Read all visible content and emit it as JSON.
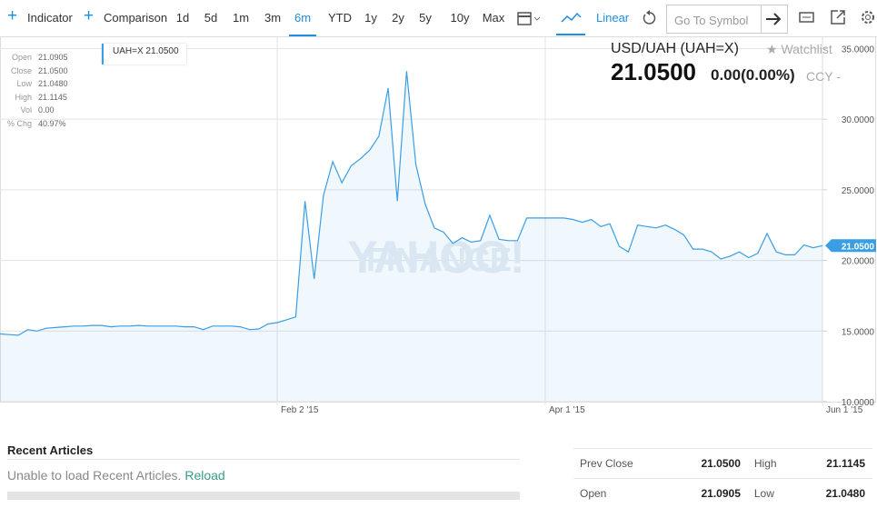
{
  "toolbar": {
    "indicator": "Indicator",
    "comparison": "Comparison",
    "ranges": [
      "1d",
      "5d",
      "1m",
      "3m",
      "6m",
      "YTD",
      "1y",
      "2y",
      "5y",
      "10y",
      "Max"
    ],
    "active_range": "6m",
    "scale": "Linear",
    "symbol_placeholder": "Go To Symbol"
  },
  "quote": {
    "name": "USD/UAH (UAH=X)",
    "watchlist": "Watchlist",
    "price": "21.0500",
    "change": "0.00(0.00%)",
    "currency": "CCY -"
  },
  "ohlc": [
    {
      "label": "Open",
      "value": "21.0905"
    },
    {
      "label": "Close",
      "value": "21.0500"
    },
    {
      "label": "Low",
      "value": "21.0480"
    },
    {
      "label": "High",
      "value": "21.1145"
    },
    {
      "label": "Vol",
      "value": "0.00"
    },
    {
      "label": "% Chg",
      "value": "40.97%"
    }
  ],
  "chart_data": {
    "type": "line",
    "legend_value": "21.0500",
    "last_label": "21.0500",
    "watermark": [
      "YAHOO!",
      "FINANCE"
    ],
    "categories": [
      null,
      null,
      null,
      null,
      null,
      null,
      null,
      null,
      null,
      null,
      null,
      null,
      null,
      null,
      null,
      null,
      null,
      null,
      null,
      null,
      null,
      null,
      null,
      null,
      null,
      null,
      null,
      null,
      null,
      null,
      "Feb 2 '15",
      null,
      null,
      null,
      null,
      null,
      null,
      null,
      null,
      null,
      null,
      null,
      null,
      null,
      null,
      null,
      null,
      null,
      null,
      null,
      null,
      null,
      null,
      null,
      null,
      null,
      null,
      null,
      null,
      "Apr 1 '15",
      null,
      null,
      null,
      null,
      null,
      null,
      null,
      null,
      null,
      null,
      null,
      null,
      null,
      null,
      null,
      null,
      null,
      null,
      null,
      null,
      null,
      null,
      null,
      null,
      null,
      null,
      null,
      null,
      null,
      "Jun 1 '15"
    ],
    "series": [
      {
        "name": "UAH=X",
        "color": "#3a9ee4",
        "values": [
          14.8,
          14.75,
          14.7,
          15.1,
          15.0,
          15.2,
          15.25,
          15.3,
          15.35,
          15.35,
          15.4,
          15.4,
          15.3,
          15.35,
          15.35,
          15.4,
          15.35,
          15.35,
          15.35,
          15.35,
          15.3,
          15.3,
          15.1,
          15.35,
          15.35,
          15.35,
          15.3,
          15.1,
          15.15,
          15.5,
          15.6,
          15.8,
          16.0,
          24.2,
          18.7,
          24.6,
          27.0,
          25.5,
          26.7,
          27.2,
          27.8,
          28.8,
          32.2,
          24.2,
          33.4,
          26.8,
          24.0,
          22.3,
          22.0,
          21.2,
          21.6,
          21.3,
          21.4,
          23.2,
          21.5,
          21.4,
          21.4,
          23.0,
          23.0,
          23.0,
          23.0,
          23.0,
          22.9,
          22.7,
          22.9,
          22.4,
          22.6,
          21.0,
          20.6,
          22.5,
          22.4,
          22.3,
          22.5,
          22.2,
          21.8,
          20.8,
          20.8,
          20.6,
          20.1,
          20.3,
          20.6,
          20.2,
          20.5,
          21.9,
          20.6,
          20.4,
          20.4,
          21.1,
          20.9,
          21.05
        ]
      }
    ],
    "ylim": [
      10,
      35.8
    ],
    "yticks": [
      {
        "value": 10,
        "label": "10.0000"
      },
      {
        "value": 15,
        "label": "15.0000"
      },
      {
        "value": 20,
        "label": "20.0000"
      },
      {
        "value": 25,
        "label": "25.0000"
      },
      {
        "value": 30,
        "label": "30.0000"
      },
      {
        "value": 35,
        "label": "35.0000"
      }
    ],
    "grid": true
  },
  "articles": {
    "title": "Recent Articles",
    "message": "Unable to load Recent Articles.",
    "reload": "Reload"
  },
  "stats": {
    "rows": [
      [
        "Prev Close",
        "21.0500",
        "High",
        "21.1145"
      ],
      [
        "Open",
        "21.0905",
        "Low",
        "21.0480"
      ]
    ]
  }
}
